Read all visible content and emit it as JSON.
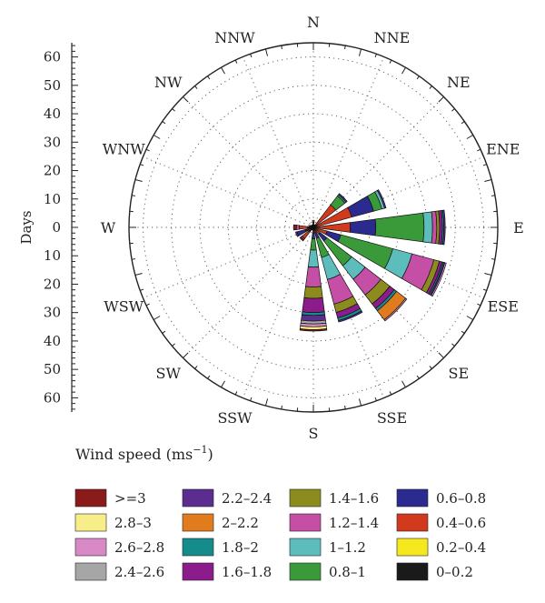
{
  "chart_data": {
    "type": "wind-rose",
    "ylabel": "Days",
    "y_ticks": [
      0,
      10,
      20,
      30,
      40,
      50,
      60
    ],
    "rmax": 65,
    "directions": [
      "N",
      "NNE",
      "NE",
      "ENE",
      "E",
      "ESE",
      "SE",
      "SSE",
      "S",
      "SSW",
      "SW",
      "WSW",
      "W",
      "WNW",
      "NW",
      "NNW"
    ],
    "legend_title": "Wind speed (ms",
    "legend_title_sup": "−1",
    "legend_title_end": ")",
    "bins": [
      {
        "label": ">=3",
        "color": "#8b1a1a"
      },
      {
        "label": "2.8–3",
        "color": "#f7ee8a"
      },
      {
        "label": "2.6–2.8",
        "color": "#d98ac6"
      },
      {
        "label": "2.4–2.6",
        "color": "#a6a6a6"
      },
      {
        "label": "2.2–2.4",
        "color": "#5b2d8e"
      },
      {
        "label": "2–2.2",
        "color": "#e07b1e"
      },
      {
        "label": "1.8–2",
        "color": "#158c8c"
      },
      {
        "label": "1.6–1.8",
        "color": "#8c1c8c"
      },
      {
        "label": "1.4–1.6",
        "color": "#8c8c1e"
      },
      {
        "label": "1.2–1.4",
        "color": "#c44fa4"
      },
      {
        "label": "1–1.2",
        "color": "#5dbdbd"
      },
      {
        "label": "0.8–1",
        "color": "#3a9a3a"
      },
      {
        "label": "0.6–0.8",
        "color": "#2b2b8f"
      },
      {
        "label": "0.4–0.6",
        "color": "#d23a1e"
      },
      {
        "label": "0.2–0.4",
        "color": "#f5e81e"
      },
      {
        "label": "0–0.2",
        "color": "#1a1a1a"
      }
    ],
    "legend_order": [
      0,
      4,
      8,
      12,
      1,
      5,
      9,
      13,
      2,
      6,
      10,
      14,
      3,
      7,
      11,
      15
    ],
    "series": [
      {
        "direction": "N",
        "segments": [
          {
            "bin": "0–0.2",
            "value": 2
          },
          {
            "bin": "0.2–0.4",
            "value": 0.5
          }
        ]
      },
      {
        "direction": "NNE",
        "segments": [
          {
            "bin": "0–0.2",
            "value": 1
          }
        ]
      },
      {
        "direction": "NE",
        "segments": [
          {
            "bin": "0–0.2",
            "value": 1
          },
          {
            "bin": "0.4–0.6",
            "value": 9
          },
          {
            "bin": "0.8–1",
            "value": 4
          },
          {
            "bin": "1–1.2",
            "value": 0.5
          },
          {
            "bin": "2.2–2.4",
            "value": 0.5
          }
        ]
      },
      {
        "direction": "ENE",
        "segments": [
          {
            "bin": "0–0.2",
            "value": 1
          },
          {
            "bin": "0.4–0.6",
            "value": 13
          },
          {
            "bin": "0.6–0.8",
            "value": 8
          },
          {
            "bin": "0.8–1",
            "value": 3
          },
          {
            "bin": "1–1.2",
            "value": 1
          },
          {
            "bin": "2.2–2.4",
            "value": 0.5
          }
        ]
      },
      {
        "direction": "E",
        "segments": [
          {
            "bin": "0–0.2",
            "value": 1
          },
          {
            "bin": "0.4–0.6",
            "value": 12
          },
          {
            "bin": "0.6–0.8",
            "value": 9
          },
          {
            "bin": "0.8–1",
            "value": 17
          },
          {
            "bin": "1–1.2",
            "value": 3
          },
          {
            "bin": "1.2–1.4",
            "value": 1.5
          },
          {
            "bin": "1.4–1.6",
            "value": 1
          },
          {
            "bin": "1.6–1.8",
            "value": 1
          },
          {
            "bin": "1.8–2",
            "value": 0.5
          },
          {
            "bin": "2.2–2.4",
            "value": 0.5
          }
        ]
      },
      {
        "direction": "ESE",
        "segments": [
          {
            "bin": "0–0.2",
            "value": 1
          },
          {
            "bin": "0.4–0.6",
            "value": 4
          },
          {
            "bin": "0.6–0.8",
            "value": 5
          },
          {
            "bin": "0.8–1",
            "value": 19
          },
          {
            "bin": "1–1.2",
            "value": 7
          },
          {
            "bin": "1.2–1.4",
            "value": 8
          },
          {
            "bin": "1.4–1.6",
            "value": 2
          },
          {
            "bin": "1.6–1.8",
            "value": 1
          },
          {
            "bin": "1.8–2",
            "value": 0.5
          },
          {
            "bin": "2.2–2.4",
            "value": 0.5
          },
          {
            "bin": "2.6–2.8",
            "value": 0.5
          }
        ]
      },
      {
        "direction": "SE",
        "segments": [
          {
            "bin": "0–0.2",
            "value": 1
          },
          {
            "bin": "0.4–0.6",
            "value": 2
          },
          {
            "bin": "0.6–0.8",
            "value": 3
          },
          {
            "bin": "0.8–1",
            "value": 11
          },
          {
            "bin": "1–1.2",
            "value": 6
          },
          {
            "bin": "1.2–1.4",
            "value": 7
          },
          {
            "bin": "1.4–1.6",
            "value": 4
          },
          {
            "bin": "1.6–1.8",
            "value": 2
          },
          {
            "bin": "1.8–2",
            "value": 1
          },
          {
            "bin": "2–2.2",
            "value": 4
          },
          {
            "bin": "2.6–2.8",
            "value": 0.5
          }
        ]
      },
      {
        "direction": "SSE",
        "segments": [
          {
            "bin": "0–0.2",
            "value": 1
          },
          {
            "bin": "0.4–0.6",
            "value": 1
          },
          {
            "bin": "0.6–0.8",
            "value": 2
          },
          {
            "bin": "0.8–1",
            "value": 7
          },
          {
            "bin": "1–1.2",
            "value": 8
          },
          {
            "bin": "1.2–1.4",
            "value": 9
          },
          {
            "bin": "1.4–1.6",
            "value": 3
          },
          {
            "bin": "1.6–1.8",
            "value": 2
          },
          {
            "bin": "1.8–2",
            "value": 1
          },
          {
            "bin": "2.2–2.4",
            "value": 0.5
          }
        ]
      },
      {
        "direction": "S",
        "segments": [
          {
            "bin": "0–0.2",
            "value": 1
          },
          {
            "bin": "0.4–0.6",
            "value": 1
          },
          {
            "bin": "0.6–0.8",
            "value": 2
          },
          {
            "bin": "0.8–1",
            "value": 4
          },
          {
            "bin": "1–1.2",
            "value": 6
          },
          {
            "bin": "1.2–1.4",
            "value": 7
          },
          {
            "bin": "1.4–1.6",
            "value": 4
          },
          {
            "bin": "1.6–1.8",
            "value": 5
          },
          {
            "bin": "1.8–2",
            "value": 1
          },
          {
            "bin": "2.2–2.4",
            "value": 2
          },
          {
            "bin": "2.4–2.6",
            "value": 1
          },
          {
            "bin": "2.6–2.8",
            "value": 1
          },
          {
            "bin": "2.8–3",
            "value": 1
          },
          {
            "bin": ">=3",
            "value": 0.5
          }
        ]
      },
      {
        "direction": "SSW",
        "segments": [
          {
            "bin": "0–0.2",
            "value": 1
          }
        ]
      },
      {
        "direction": "SW",
        "segments": [
          {
            "bin": "0–0.2",
            "value": 2
          },
          {
            "bin": "0.4–0.6",
            "value": 3
          },
          {
            "bin": "1.2–1.4",
            "value": 0.5
          },
          {
            "bin": ">=3",
            "value": 0.5
          }
        ]
      },
      {
        "direction": "WSW",
        "segments": [
          {
            "bin": "0–0.2",
            "value": 3
          },
          {
            "bin": "0.6–0.8",
            "value": 3
          },
          {
            "bin": "2.2–2.4",
            "value": 0.5
          }
        ]
      },
      {
        "direction": "W",
        "segments": [
          {
            "bin": "0–0.2",
            "value": 2
          },
          {
            "bin": "0.4–0.6",
            "value": 3
          },
          {
            "bin": "1.2–1.4",
            "value": 1
          },
          {
            "bin": ">=3",
            "value": 1
          }
        ]
      },
      {
        "direction": "WNW",
        "segments": [
          {
            "bin": "0–0.2",
            "value": 1.5
          }
        ]
      },
      {
        "direction": "NW",
        "segments": [
          {
            "bin": "0–0.2",
            "value": 1
          }
        ]
      },
      {
        "direction": "NNW",
        "segments": [
          {
            "bin": "0–0.2",
            "value": 1
          }
        ]
      }
    ]
  }
}
